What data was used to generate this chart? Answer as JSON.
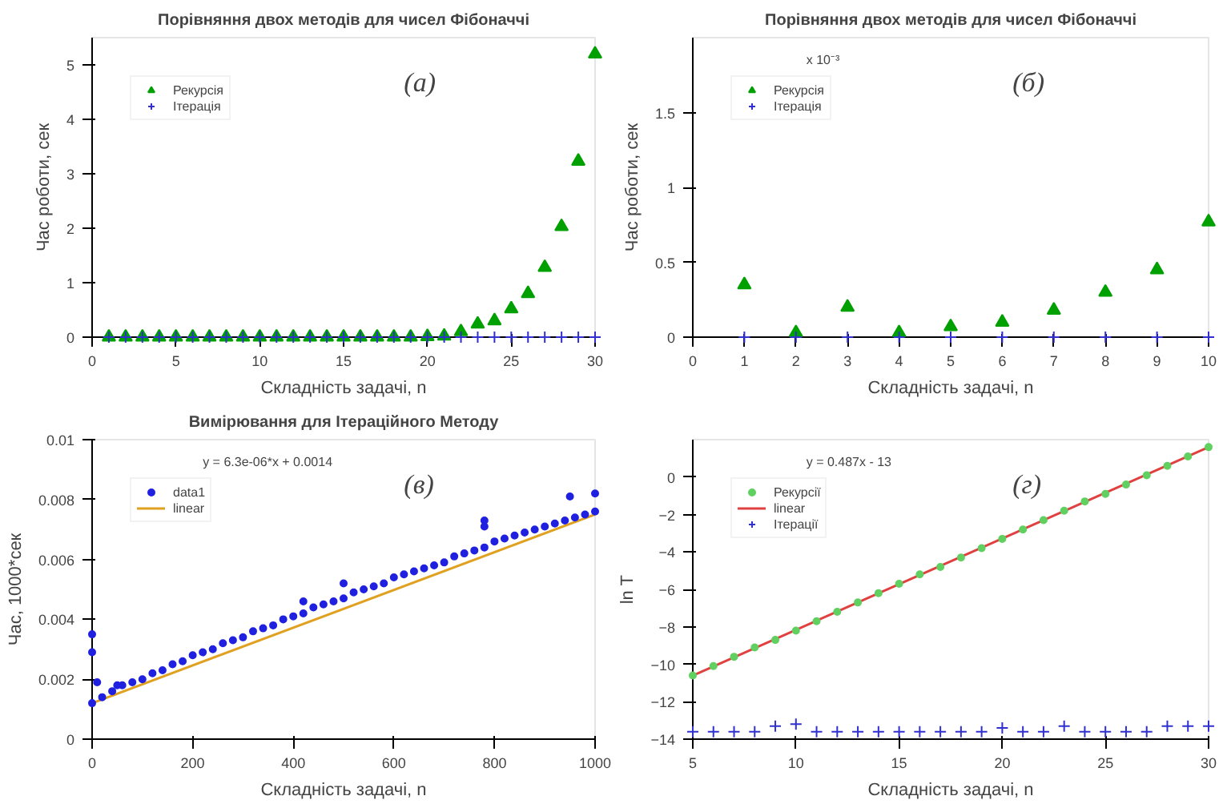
{
  "chart_data": [
    {
      "type": "scatter",
      "title": "Порівняння двох методів для чисел Фібоначчі",
      "xlabel": "Складність задачі, n",
      "ylabel": "Час роботи, сек",
      "annotations": [
        "(а)"
      ],
      "legend": "top left",
      "xlim": [
        0,
        30
      ],
      "ylim": [
        0,
        5.5
      ],
      "xticks": [
        0,
        5,
        10,
        15,
        20,
        25,
        30
      ],
      "yticks": [
        0,
        1,
        2,
        3,
        4,
        5
      ],
      "x": [
        1,
        2,
        3,
        4,
        5,
        6,
        7,
        8,
        9,
        10,
        11,
        12,
        13,
        14,
        15,
        16,
        17,
        18,
        19,
        20,
        21,
        22,
        23,
        24,
        25,
        26,
        27,
        28,
        29,
        30
      ],
      "series": [
        {
          "name": "Рекурсія",
          "color": "#00a000",
          "marker": "triangle",
          "values": [
            0,
            0,
            0,
            0,
            0,
            0,
            0,
            0,
            0,
            0,
            0,
            0,
            0,
            0,
            0,
            0,
            0,
            0,
            0,
            0.01,
            0.02,
            0.1,
            0.24,
            0.3,
            0.52,
            0.8,
            1.28,
            2.03,
            3.23,
            5.2
          ]
        },
        {
          "name": "Ітерація",
          "color": "#3030d0",
          "marker": "cross",
          "values": [
            0,
            0,
            0,
            0,
            0,
            0,
            0,
            0,
            0,
            0,
            0,
            0,
            0,
            0,
            0,
            0,
            0,
            0,
            0,
            0,
            0,
            0,
            0,
            0,
            0,
            0,
            0,
            0,
            0,
            0
          ]
        }
      ]
    },
    {
      "type": "scatter",
      "title": "Порівняння двох методів для чисел Фібоначчі",
      "xlabel": "Складність задачі, n",
      "ylabel": "Час роботи, сек",
      "annotations": [
        "(б)",
        "x 10⁻³"
      ],
      "legend": "top left",
      "xlim": [
        0,
        10
      ],
      "ylim": [
        0,
        2
      ],
      "xticks": [
        0,
        1,
        2,
        3,
        4,
        5,
        6,
        7,
        8,
        9,
        10
      ],
      "yticks": [
        0,
        0.5,
        1,
        1.5
      ],
      "x": [
        1,
        2,
        3,
        4,
        5,
        6,
        7,
        8,
        9,
        10
      ],
      "series": [
        {
          "name": "Рекурсія",
          "color": "#00a000",
          "marker": "triangle",
          "values": [
            0.35,
            0.03,
            0.2,
            0.03,
            0.07,
            0.1,
            0.18,
            0.3,
            0.45,
            0.77
          ]
        },
        {
          "name": "Ітерація",
          "color": "#3030d0",
          "marker": "cross",
          "values": [
            0,
            0,
            0,
            0,
            0,
            0,
            0,
            0,
            0,
            0
          ]
        }
      ]
    },
    {
      "type": "scatter",
      "title": "Вимірювання для Ітераційного Методу",
      "xlabel": "Складність задачі, n",
      "ylabel": "Час, 1000*сек",
      "annotations": [
        "(в)",
        "y = 6.3e-06*x + 0.0014"
      ],
      "legend": "top left",
      "xlim": [
        0,
        1000
      ],
      "ylim": [
        0,
        0.01
      ],
      "xticks": [
        0,
        200,
        400,
        600,
        800,
        1000
      ],
      "yticks": [
        0,
        0.002,
        0.004,
        0.006,
        0.008,
        0.01
      ],
      "series": [
        {
          "name": "data1",
          "color": "#2020e0",
          "marker": "circle",
          "x": [
            0,
            20,
            40,
            60,
            80,
            100,
            120,
            140,
            160,
            180,
            200,
            220,
            240,
            260,
            280,
            300,
            320,
            340,
            360,
            380,
            400,
            420,
            440,
            460,
            480,
            500,
            520,
            540,
            560,
            580,
            600,
            620,
            640,
            660,
            680,
            700,
            720,
            740,
            760,
            780,
            800,
            820,
            840,
            860,
            880,
            900,
            920,
            940,
            960,
            980,
            1000,
            0,
            0,
            10,
            50,
            420,
            500,
            780,
            780,
            950,
            1000
          ],
          "values": [
            0.0012,
            0.0014,
            0.0016,
            0.0018,
            0.0019,
            0.002,
            0.0022,
            0.0023,
            0.0025,
            0.0026,
            0.0028,
            0.0029,
            0.003,
            0.0032,
            0.0033,
            0.0034,
            0.0036,
            0.0037,
            0.0038,
            0.004,
            0.0041,
            0.0042,
            0.0044,
            0.0045,
            0.0046,
            0.0047,
            0.0049,
            0.005,
            0.0051,
            0.0052,
            0.0054,
            0.0055,
            0.0056,
            0.0057,
            0.0058,
            0.0059,
            0.0061,
            0.0062,
            0.0063,
            0.0064,
            0.0066,
            0.0067,
            0.0068,
            0.0069,
            0.007,
            0.0071,
            0.0072,
            0.0073,
            0.0074,
            0.0075,
            0.0076,
            0.0035,
            0.0029,
            0.0019,
            0.0018,
            0.0046,
            0.0052,
            0.0073,
            0.0071,
            0.0081,
            0.0082
          ]
        },
        {
          "name": "linear",
          "type": "line",
          "color": "#e0a020",
          "marker": "none",
          "x": [
            0,
            1000
          ],
          "values": [
            0.0012,
            0.0075
          ]
        }
      ]
    },
    {
      "type": "scatter",
      "xlabel": "Складність задачі, n",
      "ylabel": "ln T",
      "annotations": [
        "(г)",
        "y = 0.487x - 13"
      ],
      "legend": "top left",
      "xlim": [
        5,
        30
      ],
      "ylim": [
        -14,
        2
      ],
      "xticks": [
        5,
        10,
        15,
        20,
        25,
        30
      ],
      "yticks": [
        -14,
        -12,
        -10,
        -8,
        -6,
        -4,
        -2,
        0
      ],
      "x": [
        5,
        6,
        7,
        8,
        9,
        10,
        11,
        12,
        13,
        14,
        15,
        16,
        17,
        18,
        19,
        20,
        21,
        22,
        23,
        24,
        25,
        26,
        27,
        28,
        29,
        30
      ],
      "series": [
        {
          "name": "Рекурсії",
          "color": "#60d060",
          "marker": "circle",
          "values": [
            -10.6,
            -10.1,
            -9.6,
            -9.1,
            -8.7,
            -8.2,
            -7.7,
            -7.2,
            -6.7,
            -6.2,
            -5.7,
            -5.2,
            -4.8,
            -4.3,
            -3.8,
            -3.3,
            -2.8,
            -2.3,
            -1.8,
            -1.3,
            -0.9,
            -0.4,
            0.1,
            0.6,
            1.1,
            1.6
          ]
        },
        {
          "name": "linear",
          "type": "line",
          "color": "#e04040",
          "marker": "none",
          "x": [
            5,
            30
          ],
          "values": [
            -10.6,
            1.6
          ]
        },
        {
          "name": "Ітерації",
          "color": "#3030d0",
          "marker": "cross",
          "values": [
            -13.6,
            -13.6,
            -13.6,
            -13.6,
            -13.3,
            -13.2,
            -13.6,
            -13.6,
            -13.6,
            -13.6,
            -13.6,
            -13.6,
            -13.6,
            -13.6,
            -13.6,
            -13.4,
            -13.6,
            -13.6,
            -13.3,
            -13.6,
            -13.6,
            -13.6,
            -13.6,
            -13.3,
            -13.3,
            -13.3
          ]
        }
      ]
    }
  ]
}
